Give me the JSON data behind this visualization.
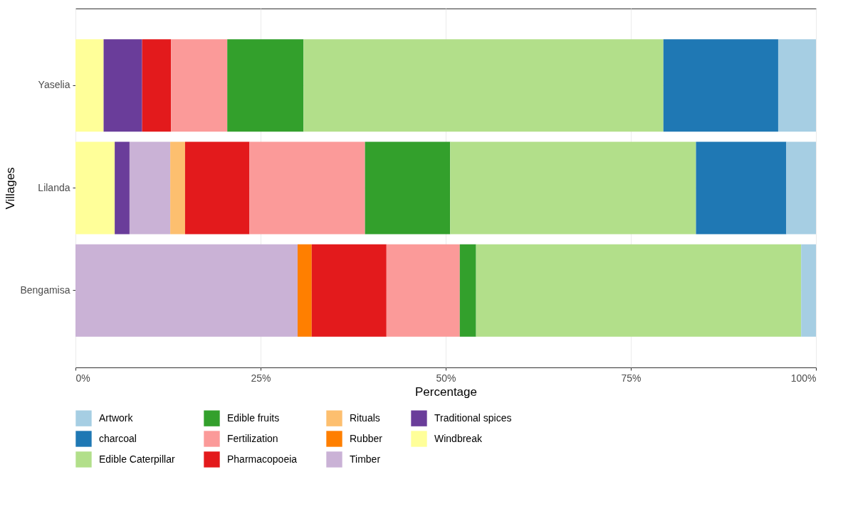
{
  "chart_data": {
    "type": "bar",
    "orientation": "horizontal",
    "stacked": true,
    "xlabel": "Percentage",
    "ylabel": "Villages",
    "categories": [
      "Yaselia",
      "Lilanda",
      "Bengamisa"
    ],
    "xlim": [
      0,
      100
    ],
    "xticks": [
      {
        "value": 0,
        "label": "0%"
      },
      {
        "value": 25,
        "label": "25%"
      },
      {
        "value": 50,
        "label": "50%"
      },
      {
        "value": 75,
        "label": "75%"
      },
      {
        "value": 100,
        "label": "100%"
      }
    ],
    "grid": true,
    "legend": "bottom",
    "series": [
      {
        "name": "Windbreak",
        "color": "#ffff99",
        "values": [
          3.8,
          5.3,
          null
        ]
      },
      {
        "name": "Traditional spices",
        "color": "#6a3d9a",
        "values": [
          5.2,
          2.0,
          null
        ]
      },
      {
        "name": "Timber",
        "color": "#cab2d6",
        "values": [
          null,
          5.5,
          30.0
        ]
      },
      {
        "name": "Rubber",
        "color": "#ff7f00",
        "values": [
          null,
          null,
          1.9
        ]
      },
      {
        "name": "Rituals",
        "color": "#fdbf6f",
        "values": [
          null,
          2.0,
          null
        ]
      },
      {
        "name": "Pharmacopoeia",
        "color": "#e31a1c",
        "values": [
          3.9,
          8.7,
          10.1
        ]
      },
      {
        "name": "Fertilization",
        "color": "#fb9a99",
        "values": [
          7.6,
          15.6,
          9.9
        ]
      },
      {
        "name": "Edible fruits",
        "color": "#33a02c",
        "values": [
          10.3,
          11.5,
          2.2
        ]
      },
      {
        "name": "Edible Caterpillar",
        "color": "#b2df8a",
        "values": [
          48.6,
          33.2,
          43.9
        ]
      },
      {
        "name": "charcoal",
        "color": "#1f78b4",
        "values": [
          15.5,
          12.2,
          null
        ]
      },
      {
        "name": "Artwork",
        "color": "#a6cee3",
        "values": [
          5.1,
          4.0,
          2.0
        ]
      }
    ]
  }
}
